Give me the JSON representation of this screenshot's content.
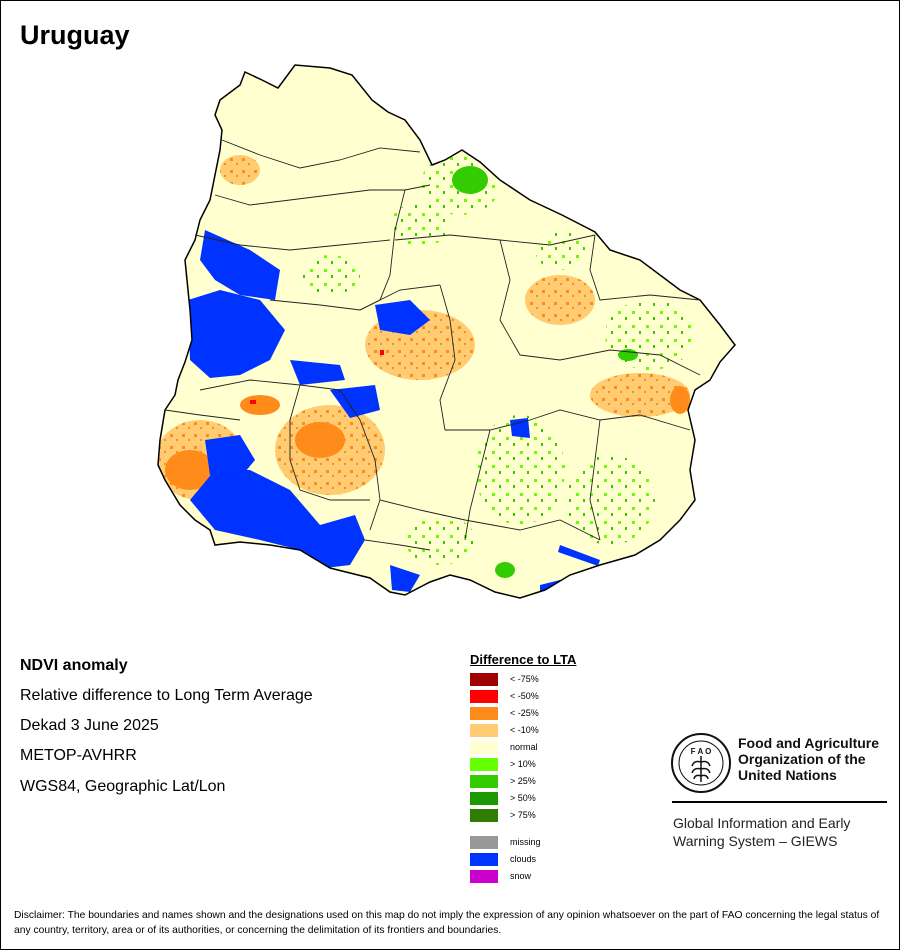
{
  "title": "Uruguay",
  "info": {
    "heading": "NDVI anomaly",
    "line1": "Relative difference to Long Term Average",
    "line2": "Dekad 3 June 2025",
    "line3": "METOP-AVHRR",
    "line4": "WGS84, Geographic Lat/Lon"
  },
  "legend": {
    "title": "Difference to LTA",
    "items": [
      {
        "label": "< -75%",
        "color": "#a00000"
      },
      {
        "label": "< -50%",
        "color": "#ff0000"
      },
      {
        "label": "< -25%",
        "color": "#ff8c1a"
      },
      {
        "label": "< -10%",
        "color": "#ffcc73"
      },
      {
        "label": "normal",
        "color": "#ffffd0"
      },
      {
        "label": "> 10%",
        "color": "#66ff00"
      },
      {
        "label": "> 25%",
        "color": "#33cc00"
      },
      {
        "label": "> 50%",
        "color": "#1a9900"
      },
      {
        "label": "> 75%",
        "color": "#2e7d00"
      }
    ],
    "extra": [
      {
        "label": "missing",
        "color": "#999999"
      },
      {
        "label": "clouds",
        "color": "#0033ff"
      },
      {
        "label": "snow",
        "color": "#cc00cc"
      }
    ]
  },
  "fao": {
    "logo_text": "FAO FIAT PANIS",
    "name_line1": "Food and Agriculture",
    "name_line2": "Organization of the",
    "name_line3": "United Nations",
    "giews_line1": "Global Information and Early",
    "giews_line2": "Warning System – GIEWS"
  },
  "disclaimer": "Disclaimer: The boundaries and names shown and the designations used on this map do not imply the expression of any opinion whatsoever on the part of FAO concerning the legal status of any country, territory, area or of its authorities, or concerning the delimitation of its frontiers and boundaries."
}
